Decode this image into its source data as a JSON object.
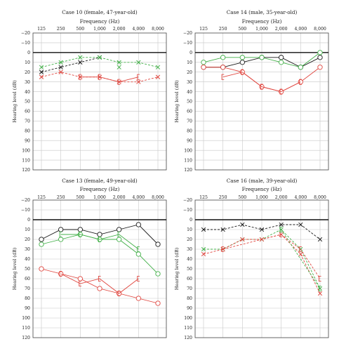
{
  "colors": {
    "black": "#1a1a1a",
    "green": "#43b049",
    "red": "#e0463f",
    "grid": "#c8c8c8"
  },
  "chart_data": [
    {
      "type": "line",
      "title": "Case 10 (female, 47-year-old)",
      "xlabel": "Frequency (Hz)",
      "ylabel": "Hearing level (dB)",
      "x_ticks": [
        "125",
        "250",
        "500",
        "1,000",
        "2,000",
        "4,000",
        "8,000"
      ],
      "y_ticks": [
        "−20",
        "−10",
        "0",
        "10",
        "20",
        "30",
        "40",
        "50",
        "60",
        "70",
        "80",
        "90",
        "100",
        "110",
        "120"
      ],
      "ylim": [
        -20,
        120
      ],
      "y_inverted": true,
      "grid": true,
      "series": [
        {
          "color": "black",
          "style": "dashed",
          "marker": "x",
          "x": [
            "125",
            "250",
            "500",
            "1,000"
          ],
          "values": [
            20,
            15,
            10,
            5
          ]
        },
        {
          "color": "green",
          "style": "dashed",
          "marker": "x",
          "x": [
            "125",
            "250",
            "500",
            "1,000",
            "2,000",
            "4,000",
            "8,000"
          ],
          "values": [
            15,
            10,
            5,
            5,
            10,
            10,
            15
          ]
        },
        {
          "color": "red",
          "style": "dashed",
          "marker": "x",
          "x": [
            "125",
            "250",
            "500",
            "1,000",
            "2,000",
            "4,000",
            "8,000"
          ],
          "values": [
            25,
            20,
            25,
            25,
            30,
            30,
            25
          ]
        },
        {
          "color": "red",
          "style": "solid",
          "marker": "bracket",
          "x": [
            "500",
            "1,000",
            "2,000",
            "4,000"
          ],
          "values": [
            25,
            25,
            30,
            25
          ]
        },
        {
          "color": "green",
          "style": "solid",
          "marker": "x",
          "x": [
            "2,000"
          ],
          "values": [
            15
          ]
        }
      ]
    },
    {
      "type": "line",
      "title": "Case 14 (male, 35-year-old)",
      "xlabel": "Frequency (Hz)",
      "ylabel": "Hearing level (dB)",
      "x_ticks": [
        "125",
        "250",
        "500",
        "1,000",
        "2,000",
        "4,000",
        "8,000"
      ],
      "y_ticks": [
        "−20",
        "−10",
        "0",
        "10",
        "20",
        "30",
        "40",
        "50",
        "60",
        "70",
        "80",
        "90",
        "100",
        "110",
        "120"
      ],
      "ylim": [
        -20,
        120
      ],
      "y_inverted": true,
      "grid": true,
      "series": [
        {
          "color": "black",
          "style": "solid",
          "marker": "circle",
          "x": [
            "125",
            "250",
            "500",
            "1,000",
            "2,000",
            "4,000",
            "8,000"
          ],
          "values": [
            15,
            15,
            10,
            5,
            5,
            15,
            5
          ]
        },
        {
          "color": "green",
          "style": "solid",
          "marker": "circle",
          "x": [
            "125",
            "250",
            "500",
            "1,000",
            "2,000",
            "4,000",
            "8,000"
          ],
          "values": [
            10,
            5,
            5,
            5,
            10,
            15,
            0
          ]
        },
        {
          "color": "red",
          "style": "solid",
          "marker": "circle",
          "x": [
            "125",
            "250",
            "500",
            "1,000",
            "2,000",
            "4,000",
            "8,000"
          ],
          "values": [
            15,
            15,
            20,
            35,
            40,
            30,
            15
          ]
        },
        {
          "color": "red",
          "style": "solid",
          "marker": "bracket",
          "x": [
            "250",
            "500",
            "1,000",
            "2,000",
            "4,000"
          ],
          "values": [
            25,
            20,
            35,
            40,
            30
          ]
        }
      ]
    },
    {
      "type": "line",
      "title": "Case 13 (female, 49-year-old)",
      "xlabel": "Frequency (Hz)",
      "ylabel": "Hearing level (dB)",
      "x_ticks": [
        "125",
        "250",
        "500",
        "1,000",
        "2,000",
        "4,000",
        "8,000"
      ],
      "y_ticks": [
        "−20",
        "−10",
        "0",
        "10",
        "20",
        "30",
        "40",
        "50",
        "60",
        "70",
        "80",
        "90",
        "100",
        "110",
        "120"
      ],
      "ylim": [
        -20,
        120
      ],
      "y_inverted": true,
      "grid": true,
      "series": [
        {
          "color": "black",
          "style": "solid",
          "marker": "circle",
          "x": [
            "125",
            "250",
            "500",
            "1,000",
            "2,000",
            "4,000",
            "8,000"
          ],
          "values": [
            20,
            10,
            10,
            15,
            10,
            5,
            25
          ]
        },
        {
          "color": "green",
          "style": "solid",
          "marker": "circle",
          "x": [
            "125",
            "250",
            "500",
            "1,000",
            "2,000",
            "4,000",
            "8,000"
          ],
          "values": [
            25,
            20,
            15,
            20,
            20,
            35,
            55
          ]
        },
        {
          "color": "green",
          "style": "solid",
          "marker": "bracket",
          "x": [
            "250",
            "500",
            "1,000",
            "2,000",
            "4,000"
          ],
          "values": [
            15,
            15,
            20,
            15,
            30
          ]
        },
        {
          "color": "red",
          "style": "solid",
          "marker": "circle",
          "x": [
            "125",
            "250",
            "500",
            "1,000",
            "2,000",
            "4,000",
            "8,000"
          ],
          "values": [
            50,
            55,
            60,
            70,
            75,
            80,
            85
          ]
        },
        {
          "color": "red",
          "style": "solid",
          "marker": "bracket",
          "x": [
            "250",
            "500",
            "1,000",
            "2,000",
            "4,000"
          ],
          "values": [
            55,
            65,
            60,
            75,
            60
          ]
        }
      ]
    },
    {
      "type": "line",
      "title": "Case 16 (male, 39-year-old)",
      "xlabel": "Frequency (Hz)",
      "ylabel": "Hearing level (dB)",
      "x_ticks": [
        "125",
        "250",
        "500",
        "1,000",
        "2,000",
        "4,000",
        "8,000"
      ],
      "y_ticks": [
        "−20",
        "−10",
        "0",
        "10",
        "20",
        "30",
        "40",
        "50",
        "60",
        "70",
        "80",
        "90",
        "100",
        "110",
        "120"
      ],
      "ylim": [
        -20,
        120
      ],
      "y_inverted": true,
      "grid": true,
      "series": [
        {
          "color": "black",
          "style": "dashed",
          "marker": "x",
          "x": [
            "125",
            "250",
            "500",
            "1,000",
            "2,000",
            "4,000",
            "8,000"
          ],
          "values": [
            10,
            10,
            5,
            10,
            5,
            5,
            20
          ]
        },
        {
          "color": "green",
          "style": "dashed",
          "marker": "x",
          "x": [
            "125",
            "250",
            "500",
            "1,000",
            "2,000",
            "4,000",
            "8,000"
          ],
          "values": [
            30,
            30,
            20,
            20,
            10,
            30,
            70
          ]
        },
        {
          "color": "red",
          "style": "dashed",
          "marker": "x",
          "x": [
            "125",
            "250",
            "500",
            "1,000",
            "2,000",
            "4,000",
            "8,000"
          ],
          "values": [
            35,
            30,
            20,
            20,
            15,
            35,
            75
          ]
        },
        {
          "color": "red",
          "style": "dashed",
          "marker": "bracket",
          "x": [
            "250",
            "2,000",
            "4,000",
            "8,000"
          ],
          "values": [
            30,
            15,
            30,
            60
          ]
        },
        {
          "color": "green",
          "style": "dashed",
          "marker": "bracket",
          "x": [
            "2,000",
            "8,000"
          ],
          "values": [
            10,
            70
          ]
        }
      ]
    }
  ]
}
